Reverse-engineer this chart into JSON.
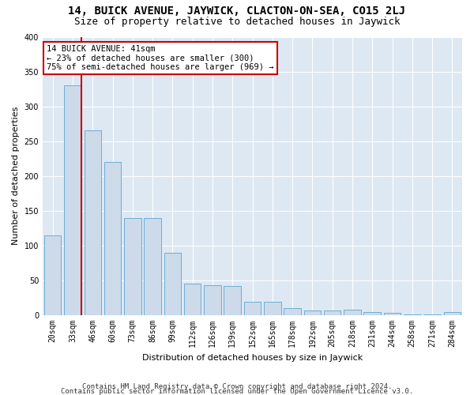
{
  "title": "14, BUICK AVENUE, JAYWICK, CLACTON-ON-SEA, CO15 2LJ",
  "subtitle": "Size of property relative to detached houses in Jaywick",
  "xlabel": "Distribution of detached houses by size in Jaywick",
  "ylabel": "Number of detached properties",
  "categories": [
    "20sqm",
    "33sqm",
    "46sqm",
    "60sqm",
    "73sqm",
    "86sqm",
    "99sqm",
    "112sqm",
    "126sqm",
    "139sqm",
    "152sqm",
    "165sqm",
    "178sqm",
    "192sqm",
    "205sqm",
    "218sqm",
    "231sqm",
    "244sqm",
    "258sqm",
    "271sqm",
    "284sqm"
  ],
  "values": [
    115,
    330,
    265,
    220,
    140,
    140,
    90,
    45,
    43,
    42,
    19,
    19,
    10,
    7,
    7,
    8,
    5,
    4,
    1,
    1,
    5
  ],
  "bar_color": "#ccdaea",
  "bar_edge_color": "#6baed6",
  "vline_x_idx": 1,
  "vline_color": "#cc0000",
  "annotation_text": "14 BUICK AVENUE: 41sqm\n← 23% of detached houses are smaller (300)\n75% of semi-detached houses are larger (969) →",
  "annotation_box_facecolor": "#ffffff",
  "annotation_box_edgecolor": "#cc0000",
  "ylim": [
    0,
    400
  ],
  "yticks": [
    0,
    50,
    100,
    150,
    200,
    250,
    300,
    350,
    400
  ],
  "bg_color": "#dde8f3",
  "grid_color": "#ffffff",
  "footer_line1": "Contains HM Land Registry data © Crown copyright and database right 2024.",
  "footer_line2": "Contains public sector information licensed under the Open Government Licence v3.0.",
  "title_fontsize": 10,
  "subtitle_fontsize": 9,
  "tick_fontsize": 7,
  "ylabel_fontsize": 8,
  "xlabel_fontsize": 8,
  "annotation_fontsize": 7.5,
  "footer_fontsize": 6.5
}
